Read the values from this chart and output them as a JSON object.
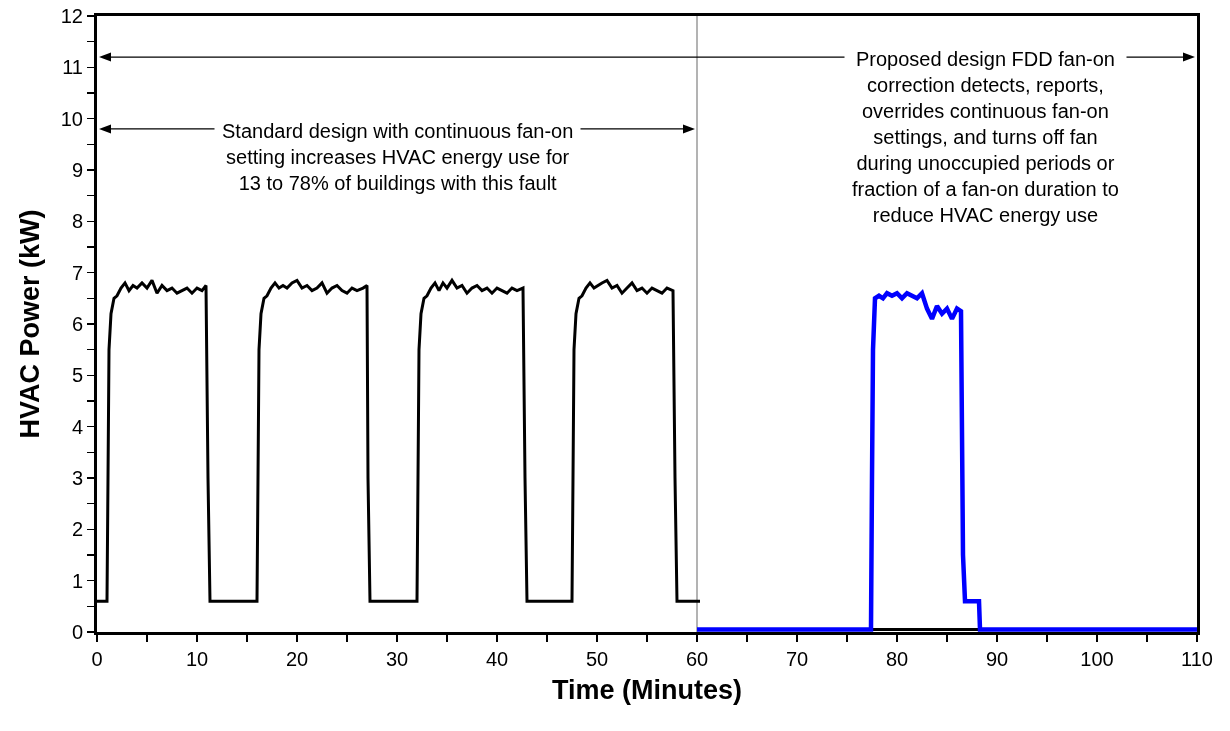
{
  "chart_data": {
    "type": "line",
    "xlabel": "Time (Minutes)",
    "ylabel": "HVAC Power (kW)",
    "xlim": [
      0,
      110
    ],
    "xticks": [
      0,
      {
        "value": 5,
        "label": null
      },
      10,
      {
        "value": 15,
        "label": null
      },
      20,
      {
        "value": 25,
        "label": null
      },
      30,
      {
        "value": 35,
        "label": null
      },
      40,
      {
        "value": 45,
        "label": null
      },
      50,
      {
        "value": 55,
        "label": null
      },
      60,
      {
        "value": 65,
        "label": null
      },
      70,
      {
        "value": 75,
        "label": null
      },
      80,
      {
        "value": 85,
        "label": null
      },
      90,
      {
        "value": 95,
        "label": null
      },
      100,
      {
        "value": 105,
        "label": null
      },
      110
    ],
    "ylim": [
      0,
      12
    ],
    "yticks": [
      0,
      {
        "value": 0.5,
        "label": null
      },
      1,
      {
        "value": 1.5,
        "label": null
      },
      2,
      {
        "value": 2.5,
        "label": null
      },
      3,
      {
        "value": 3.5,
        "label": null
      },
      4,
      {
        "value": 4.5,
        "label": null
      },
      5,
      {
        "value": 5.5,
        "label": null
      },
      6,
      {
        "value": 6.5,
        "label": null
      },
      7,
      {
        "value": 7.5,
        "label": null
      },
      8,
      {
        "value": 8.5,
        "label": null
      },
      9,
      {
        "value": 9.5,
        "label": null
      },
      10,
      {
        "value": 10.5,
        "label": null
      },
      11,
      {
        "value": 11.5,
        "label": null
      },
      12
    ],
    "grid": false,
    "marker": "none",
    "line_style": "solid",
    "ref_lines": [
      {
        "axis": "x",
        "value": 60,
        "color": "#808080"
      }
    ],
    "annotations": [
      "Standard design with continuous fan-on\nsetting increases HVAC energy use for\n13 to 78% of buildings with this fault",
      "Proposed design FDD fan-on\ncorrection detects, reports,\noverrides continuous fan-on\nsettings, and turns off fan\nduring unoccupied periods or\nfraction of a fan-on duration to\nreduce HVAC energy use"
    ],
    "series": [
      {
        "color": "#000000",
        "x": [
          0,
          1.0,
          1.1,
          1.2,
          1.4,
          1.7,
          2.0,
          2.4,
          2.8,
          3.2,
          3.6,
          4.0,
          4.5,
          5.0,
          5.5,
          6.0,
          6.5,
          7.0,
          7.5,
          8.0,
          8.5,
          9.0,
          9.5,
          10.0,
          10.5,
          10.9,
          11.1,
          11.3,
          16.0,
          16.1,
          16.2,
          16.4,
          16.7,
          17.0,
          17.4,
          17.8,
          18.2,
          18.6,
          19.0,
          19.5,
          20.0,
          20.5,
          21.0,
          21.5,
          22.0,
          22.5,
          23.0,
          23.5,
          24.0,
          24.5,
          25.0,
          25.5,
          26.0,
          26.6,
          27.0,
          27.1,
          27.3,
          32.0,
          32.1,
          32.2,
          32.4,
          32.7,
          33.0,
          33.4,
          33.8,
          34.2,
          34.6,
          35.0,
          35.5,
          36.0,
          36.5,
          37.0,
          37.5,
          38.0,
          38.5,
          39.0,
          39.5,
          40.0,
          40.5,
          41.0,
          41.5,
          42.0,
          42.6,
          42.8,
          43.0,
          47.5,
          47.6,
          47.7,
          47.9,
          48.2,
          48.5,
          48.9,
          49.3,
          49.7,
          50.1,
          50.5,
          51.0,
          51.5,
          52.0,
          52.5,
          53.0,
          53.5,
          54.0,
          54.5,
          55.0,
          55.5,
          56.0,
          56.5,
          57.0,
          57.6,
          57.8,
          58.0,
          60.3,
          null,
          60,
          77.5,
          88,
          110
        ],
        "values": [
          0.6,
          0.6,
          3.0,
          5.5,
          6.2,
          6.5,
          6.55,
          6.7,
          6.8,
          6.65,
          6.75,
          6.7,
          6.8,
          6.7,
          6.85,
          6.6,
          6.75,
          6.65,
          6.7,
          6.6,
          6.65,
          6.7,
          6.6,
          6.7,
          6.65,
          6.75,
          3.0,
          0.6,
          0.6,
          3.0,
          5.5,
          6.2,
          6.5,
          6.55,
          6.7,
          6.8,
          6.7,
          6.75,
          6.7,
          6.8,
          6.85,
          6.7,
          6.75,
          6.65,
          6.7,
          6.8,
          6.6,
          6.7,
          6.75,
          6.65,
          6.6,
          6.7,
          6.65,
          6.7,
          6.75,
          3.0,
          0.6,
          0.6,
          3.0,
          5.5,
          6.2,
          6.5,
          6.55,
          6.7,
          6.8,
          6.65,
          6.8,
          6.7,
          6.85,
          6.7,
          6.75,
          6.6,
          6.7,
          6.75,
          6.65,
          6.7,
          6.6,
          6.7,
          6.65,
          6.6,
          6.7,
          6.65,
          6.7,
          3.0,
          0.6,
          0.6,
          3.0,
          5.5,
          6.2,
          6.5,
          6.55,
          6.7,
          6.8,
          6.7,
          6.75,
          6.8,
          6.85,
          6.7,
          6.75,
          6.6,
          6.7,
          6.8,
          6.65,
          6.7,
          6.6,
          6.7,
          6.65,
          6.6,
          6.7,
          6.65,
          3.0,
          0.6,
          0.6,
          null,
          0.05,
          0.05,
          0.05,
          0.05
        ]
      },
      {
        "color": "#0000ff",
        "x": [
          60,
          77.4,
          77.5,
          77.6,
          77.8,
          78.2,
          78.6,
          79.0,
          79.5,
          80.0,
          80.5,
          81.0,
          81.5,
          82.0,
          82.5,
          83.0,
          83.5,
          84.0,
          84.5,
          85.0,
          85.5,
          86.0,
          86.4,
          86.6,
          86.8,
          88.2,
          88.3,
          110
        ],
        "values": [
          0.05,
          0.05,
          3.0,
          5.5,
          6.5,
          6.55,
          6.5,
          6.6,
          6.55,
          6.6,
          6.5,
          6.6,
          6.55,
          6.5,
          6.6,
          6.3,
          6.1,
          6.35,
          6.2,
          6.3,
          6.1,
          6.3,
          6.25,
          1.5,
          0.6,
          0.6,
          0.05,
          0.05
        ]
      }
    ]
  }
}
